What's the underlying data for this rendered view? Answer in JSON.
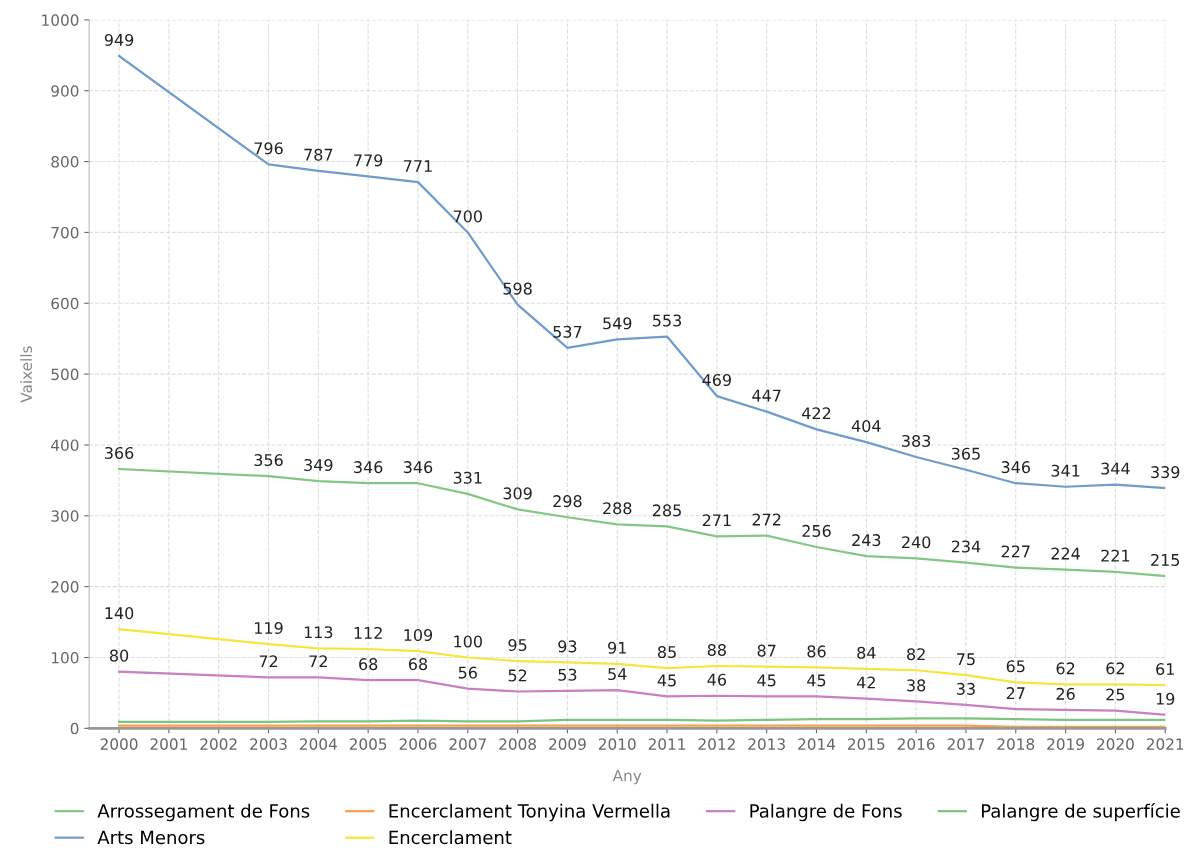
{
  "chart_data": {
    "type": "line",
    "xlabel": "Any",
    "ylabel": "Vaixells",
    "x": [
      2000,
      2003,
      2004,
      2005,
      2006,
      2007,
      2008,
      2009,
      2010,
      2011,
      2012,
      2013,
      2014,
      2015,
      2016,
      2017,
      2018,
      2019,
      2020,
      2021
    ],
    "xlim": [
      1999.4,
      2021
    ],
    "xticks": [
      2000,
      2001,
      2002,
      2003,
      2004,
      2005,
      2006,
      2007,
      2008,
      2009,
      2010,
      2011,
      2012,
      2013,
      2014,
      2015,
      2016,
      2017,
      2018,
      2019,
      2020,
      2021
    ],
    "ylim": [
      0,
      1000
    ],
    "yticks": [
      0,
      100,
      200,
      300,
      400,
      500,
      600,
      700,
      800,
      900,
      1000
    ],
    "grid": true,
    "legend": "bottom",
    "marker": "none",
    "line_style": "solid",
    "series": [
      {
        "name": "Arrossegament de Fons",
        "color": "#84c683",
        "values": [
          366,
          356,
          349,
          346,
          346,
          331,
          309,
          298,
          288,
          285,
          271,
          272,
          256,
          243,
          240,
          234,
          227,
          224,
          221,
          215
        ],
        "value_labels": [
          "366",
          "356",
          "349",
          "346",
          "346",
          "331",
          "309",
          "298",
          "288",
          "285",
          "271",
          "272",
          "256",
          "243",
          "240",
          "234",
          "227",
          "224",
          "221",
          "215"
        ]
      },
      {
        "name": "Arts Menors",
        "color": "#6f9ccc",
        "values": [
          949,
          796,
          787,
          779,
          771,
          700,
          598,
          537,
          549,
          553,
          469,
          447,
          422,
          404,
          383,
          365,
          346,
          341,
          344,
          339
        ],
        "value_labels": [
          "949",
          "796",
          "787",
          "779",
          "771",
          "700",
          "598",
          "537",
          "549",
          "553",
          "469",
          "447",
          "422",
          "404",
          "383",
          "365",
          "346",
          "341",
          "344",
          "339"
        ]
      },
      {
        "name": "Encerclament Tonyina Vermella",
        "color": "#f5a04a",
        "values": [
          4,
          4,
          4,
          4,
          4,
          4,
          4,
          4,
          4,
          4,
          4,
          4,
          4,
          4,
          4,
          4,
          2,
          2,
          2,
          2
        ]
      },
      {
        "name": "Encerclament",
        "color": "#f8e43a",
        "values": [
          140,
          119,
          113,
          112,
          109,
          100,
          95,
          93,
          91,
          85,
          88,
          87,
          86,
          84,
          82,
          75,
          65,
          62,
          62,
          61
        ],
        "value_labels": [
          "140",
          "119",
          "113",
          "112",
          "109",
          "100",
          "95",
          "93",
          "91",
          "85",
          "88",
          "87",
          "86",
          "84",
          "82",
          "75",
          "65",
          "62",
          "62",
          "61"
        ]
      },
      {
        "name": "Palangre de Fons",
        "color": "#c97fc0",
        "values": [
          80,
          72,
          72,
          68,
          68,
          56,
          52,
          53,
          54,
          45,
          46,
          45,
          45,
          42,
          38,
          33,
          27,
          26,
          25,
          19
        ],
        "value_labels": [
          "80",
          "72",
          "72",
          "68",
          "68",
          "56",
          "52",
          "53",
          "54",
          "45",
          "46",
          "45",
          "45",
          "42",
          "38",
          "33",
          "27",
          "26",
          "25",
          "19"
        ]
      },
      {
        "name": "Palangre de superfície",
        "color": "#7cc47f",
        "values": [
          9,
          9,
          10,
          10,
          11,
          10,
          10,
          12,
          12,
          12,
          11,
          12,
          13,
          13,
          14,
          14,
          13,
          12,
          12,
          12
        ]
      }
    ]
  }
}
